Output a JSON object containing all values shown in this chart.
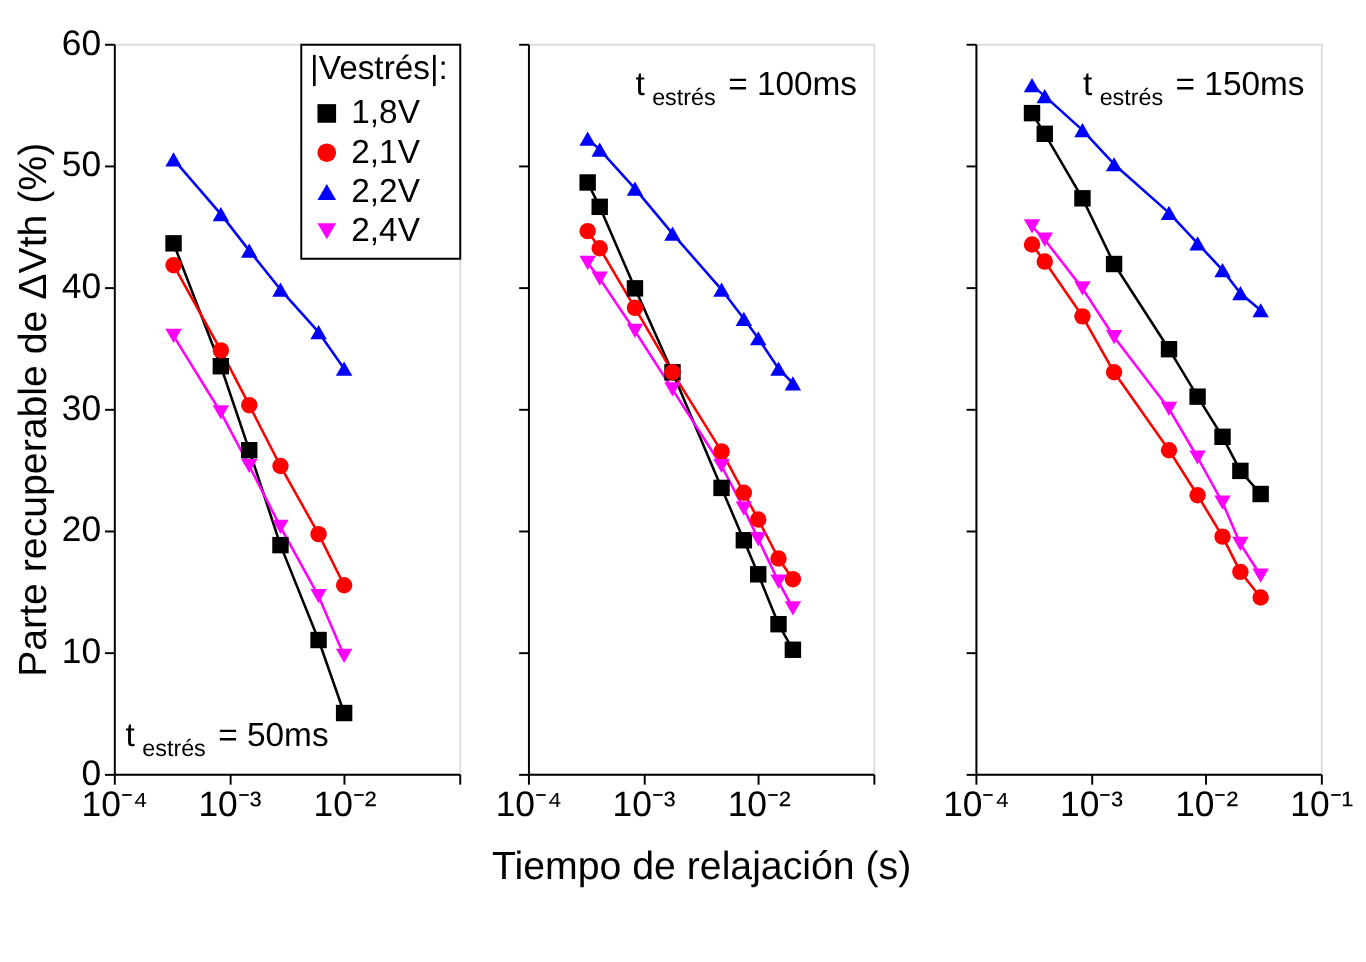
{
  "chart_data": [
    {
      "type": "line",
      "ylabel": "Parte recuperable de ΔVth (%)",
      "legend_title": "|Vestrés|:",
      "legend": "top right",
      "grid": false,
      "tick_labels": "xy",
      "xlim": [
        0.0001,
        0.1
      ],
      "ylim": [
        0,
        60
      ],
      "log": "x",
      "xticks": [
        {
          "value": 0.0001,
          "label": "10⁻⁴"
        },
        {
          "value": 0.001,
          "label": "10⁻³"
        },
        {
          "value": 0.01,
          "label": "10⁻²"
        },
        {
          "value": 0.1,
          "label": null
        }
      ],
      "yticks": [
        0,
        10,
        20,
        30,
        40,
        50,
        60
      ],
      "annotations": [
        "t$_{estrés}$ = 50ms"
      ],
      "series": [
        {
          "name": "1,8V",
          "color": "#000000",
          "marker": "square",
          "x": [
            0.00033,
            0.00085,
            0.0015,
            0.0028,
            0.006,
            0.01
          ],
          "values": [
            43.6,
            33.5,
            26.6,
            18.8,
            11,
            5
          ]
        },
        {
          "name": "2,1V",
          "color": "#ff0000",
          "marker": "circle",
          "x": [
            0.00033,
            0.00085,
            0.0015,
            0.0028,
            0.006,
            0.01
          ],
          "values": [
            41.8,
            34.8,
            30.3,
            25.3,
            19.7,
            15.5
          ]
        },
        {
          "name": "2,2V",
          "color": "#0000ff",
          "marker": "triangle",
          "x": [
            0.00033,
            0.00085,
            0.0015,
            0.0028,
            0.006,
            0.01
          ],
          "values": [
            50.5,
            46,
            43,
            39.8,
            36.3,
            33.3
          ]
        },
        {
          "name": "2,4V",
          "color": "#ff00ff",
          "marker": "triangle-down",
          "x": [
            0.00033,
            0.00085,
            0.0015,
            0.0028,
            0.006,
            0.01
          ],
          "values": [
            36,
            29.7,
            25.3,
            20.3,
            14.6,
            9.7
          ]
        }
      ]
    },
    {
      "type": "line",
      "xlabel": "Tiempo de relajación (s)",
      "legend": false,
      "grid": false,
      "tick_labels": "x",
      "xlim": [
        0.0001,
        0.1
      ],
      "ylim": [
        0,
        60
      ],
      "log": "x",
      "xticks": [
        {
          "value": 0.0001,
          "label": "10⁻⁴"
        },
        {
          "value": 0.001,
          "label": "10⁻³"
        },
        {
          "value": 0.01,
          "label": "10⁻²"
        },
        {
          "value": 0.1,
          "label": null
        }
      ],
      "yticks": [
        0,
        10,
        20,
        30,
        40,
        50,
        60
      ],
      "annotations": [
        "t$_{estrés}$ = 100ms"
      ],
      "series": [
        {
          "color": "#000000",
          "marker": "square",
          "x": [
            0.00033,
            0.00042,
            0.00085,
            0.0018,
            0.0048,
            0.0075,
            0.01,
            0.015,
            0.02
          ],
          "values": [
            48.6,
            46.6,
            39.9,
            33,
            23.5,
            19.2,
            16.4,
            12.3,
            10.2
          ]
        },
        {
          "color": "#ff0000",
          "marker": "circle",
          "x": [
            0.00033,
            0.00042,
            0.00085,
            0.0018,
            0.0048,
            0.0075,
            0.01,
            0.015,
            0.02
          ],
          "values": [
            44.6,
            43.2,
            38.3,
            33,
            26.5,
            23.1,
            20.9,
            17.7,
            16
          ]
        },
        {
          "color": "#0000ff",
          "marker": "triangle",
          "x": [
            0.00033,
            0.00042,
            0.00085,
            0.0018,
            0.0048,
            0.0075,
            0.01,
            0.015,
            0.02
          ],
          "values": [
            52.2,
            51.3,
            48.1,
            44.4,
            39.8,
            37.4,
            35.8,
            33.3,
            32.1
          ]
        },
        {
          "color": "#ff00ff",
          "marker": "triangle-down",
          "x": [
            0.00033,
            0.00042,
            0.00085,
            0.0018,
            0.0048,
            0.0075,
            0.01,
            0.015,
            0.02
          ],
          "values": [
            42,
            40.7,
            36.4,
            31.6,
            25.3,
            21.8,
            19.3,
            15.8,
            13.6
          ]
        }
      ]
    },
    {
      "type": "line",
      "legend": false,
      "grid": false,
      "tick_labels": "x",
      "xlim": [
        0.0001,
        0.1
      ],
      "ylim": [
        0,
        60
      ],
      "log": "x",
      "xticks": [
        {
          "value": 0.0001,
          "label": "10⁻⁴"
        },
        {
          "value": 0.001,
          "label": "10⁻³"
        },
        {
          "value": 0.01,
          "label": "10⁻²"
        },
        {
          "value": 0.1,
          "label": "10⁻¹"
        }
      ],
      "yticks": [
        0,
        10,
        20,
        30,
        40,
        50,
        60
      ],
      "annotations": [
        "t$_{estrés}$ = 150ms"
      ],
      "series": [
        {
          "color": "#000000",
          "marker": "square",
          "x": [
            0.00031,
            0.0004,
            0.00085,
            0.0016,
            0.0048,
            0.0085,
            0.014,
            0.02,
            0.03
          ],
          "values": [
            54.3,
            52.6,
            47.3,
            41.9,
            34.9,
            31,
            27.7,
            24.9,
            23
          ]
        },
        {
          "color": "#ff0000",
          "marker": "circle",
          "x": [
            0.00031,
            0.0004,
            0.00085,
            0.0016,
            0.0048,
            0.0085,
            0.014,
            0.02,
            0.03
          ],
          "values": [
            43.5,
            42.1,
            37.6,
            33,
            26.6,
            22.9,
            19.5,
            16.6,
            14.5
          ]
        },
        {
          "color": "#0000ff",
          "marker": "triangle",
          "x": [
            0.00031,
            0.0004,
            0.00085,
            0.0016,
            0.0048,
            0.0085,
            0.014,
            0.02,
            0.03
          ],
          "values": [
            56.6,
            55.7,
            52.9,
            50.1,
            46.1,
            43.6,
            41.4,
            39.5,
            38.1
          ]
        },
        {
          "color": "#ff00ff",
          "marker": "triangle-down",
          "x": [
            0.00031,
            0.0004,
            0.00085,
            0.0016,
            0.0048,
            0.0085,
            0.014,
            0.02,
            0.03
          ],
          "values": [
            45,
            43.9,
            39.9,
            35.9,
            30,
            26,
            22.3,
            18.9,
            16.3
          ]
        }
      ]
    }
  ]
}
